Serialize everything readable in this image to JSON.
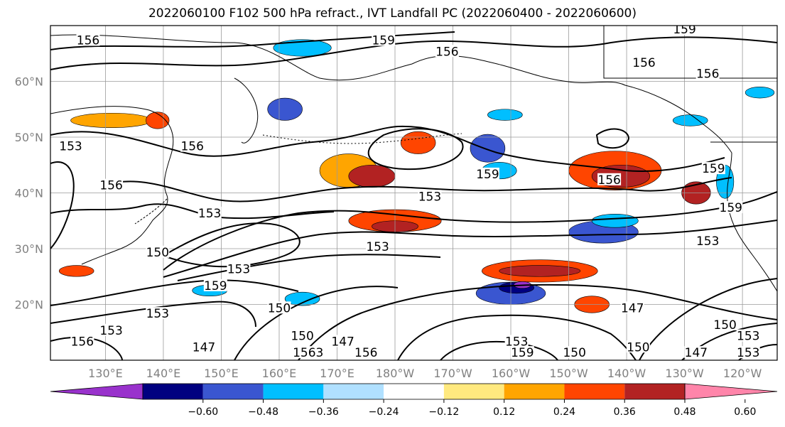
{
  "title": "2022060100 F102 500 hPa refract., IVT Landfall PC (2022060400 - 2022060600)",
  "latitudes": [
    {
      "label": "60°N",
      "lat": 60
    },
    {
      "label": "50°N",
      "lat": 50
    },
    {
      "label": "40°N",
      "lat": 40
    },
    {
      "label": "30°N",
      "lat": 30
    },
    {
      "label": "20°N",
      "lat": 20
    }
  ],
  "longitudes": [
    {
      "label": "130°E",
      "lon": 130
    },
    {
      "label": "140°E",
      "lon": 140
    },
    {
      "label": "150°E",
      "lon": 150
    },
    {
      "label": "160°E",
      "lon": 160
    },
    {
      "label": "170°E",
      "lon": 170
    },
    {
      "label": "180°W",
      "lon": 180
    },
    {
      "label": "170°W",
      "lon": 190
    },
    {
      "label": "160°W",
      "lon": 200
    },
    {
      "label": "150°W",
      "lon": 210
    },
    {
      "label": "140°W",
      "lon": 220
    },
    {
      "label": "130°W",
      "lon": 230
    },
    {
      "label": "120°W",
      "lon": 240
    }
  ],
  "colorbar": {
    "colors": [
      "#9932cc",
      "#000080",
      "#3a56d0",
      "#00bfff",
      "#b0e0ff",
      "#ffffff",
      "#ffe97f",
      "#ffa500",
      "#ff4500",
      "#b22222",
      "#ff85aa"
    ],
    "ticks": [
      "−0.60",
      "−0.48",
      "−0.36",
      "−0.24",
      "−0.12",
      "0.12",
      "0.24",
      "0.36",
      "0.48",
      "0.60"
    ]
  },
  "contour_labels": [
    {
      "text": "156",
      "lon": 127,
      "lat": 67
    },
    {
      "text": "159",
      "lon": 178,
      "lat": 67
    },
    {
      "text": "156",
      "lon": 189,
      "lat": 65
    },
    {
      "text": "159",
      "lon": 230,
      "lat": 69
    },
    {
      "text": "156",
      "lon": 223,
      "lat": 63
    },
    {
      "text": "156",
      "lon": 234,
      "lat": 61
    },
    {
      "text": "153",
      "lon": 124,
      "lat": 48
    },
    {
      "text": "156",
      "lon": 145,
      "lat": 48
    },
    {
      "text": "156",
      "lon": 131,
      "lat": 41
    },
    {
      "text": "159",
      "lon": 196,
      "lat": 43
    },
    {
      "text": "156",
      "lon": 217,
      "lat": 42
    },
    {
      "text": "153",
      "lon": 186,
      "lat": 39
    },
    {
      "text": "159",
      "lon": 235,
      "lat": 44
    },
    {
      "text": "159",
      "lon": 238,
      "lat": 37
    },
    {
      "text": "153",
      "lon": 148,
      "lat": 36
    },
    {
      "text": "153",
      "lon": 234,
      "lat": 31
    },
    {
      "text": "153",
      "lon": 177,
      "lat": 30
    },
    {
      "text": "150",
      "lon": 139,
      "lat": 29
    },
    {
      "text": "153",
      "lon": 153,
      "lat": 26
    },
    {
      "text": "159",
      "lon": 149,
      "lat": 23
    },
    {
      "text": "150",
      "lon": 160,
      "lat": 19
    },
    {
      "text": "153",
      "lon": 139,
      "lat": 18
    },
    {
      "text": "147",
      "lon": 221,
      "lat": 19
    },
    {
      "text": "150",
      "lon": 164,
      "lat": 14
    },
    {
      "text": "147",
      "lon": 171,
      "lat": 13
    },
    {
      "text": "147",
      "lon": 147,
      "lat": 12
    },
    {
      "text": "1563",
      "lon": 165,
      "lat": 11
    },
    {
      "text": "156",
      "lon": 175,
      "lat": 11
    },
    {
      "text": "153",
      "lon": 201,
      "lat": 13
    },
    {
      "text": "159",
      "lon": 202,
      "lat": 11
    },
    {
      "text": "150",
      "lon": 211,
      "lat": 11
    },
    {
      "text": "150",
      "lon": 222,
      "lat": 12
    },
    {
      "text": "147",
      "lon": 232,
      "lat": 11
    },
    {
      "text": "150",
      "lon": 237,
      "lat": 16
    },
    {
      "text": "153",
      "lon": 241,
      "lat": 14
    },
    {
      "text": "153",
      "lon": 241,
      "lat": 11
    },
    {
      "text": "153",
      "lon": 131,
      "lat": 15
    },
    {
      "text": "156",
      "lon": 126,
      "lat": 13
    }
  ],
  "fill_patches": [
    {
      "lon": 131,
      "lat": 53,
      "rx": 7,
      "ry": 1.3,
      "level": 7
    },
    {
      "lon": 139,
      "lat": 53,
      "rx": 2,
      "ry": 1.5,
      "level": 8
    },
    {
      "lon": 172,
      "lat": 44,
      "rx": 5,
      "ry": 3,
      "level": 7
    },
    {
      "lon": 176,
      "lat": 43,
      "rx": 4,
      "ry": 2,
      "level": 9
    },
    {
      "lon": 184,
      "lat": 49,
      "rx": 3,
      "ry": 2,
      "level": 8
    },
    {
      "lon": 218,
      "lat": 44,
      "rx": 8,
      "ry": 3.5,
      "level": 8
    },
    {
      "lon": 219,
      "lat": 43,
      "rx": 5,
      "ry": 2,
      "level": 9
    },
    {
      "lon": 232,
      "lat": 40,
      "rx": 2.5,
      "ry": 2,
      "level": 9
    },
    {
      "lon": 180,
      "lat": 35,
      "rx": 8,
      "ry": 2,
      "level": 8
    },
    {
      "lon": 180,
      "lat": 34,
      "rx": 4,
      "ry": 1,
      "level": 9
    },
    {
      "lon": 205,
      "lat": 26,
      "rx": 10,
      "ry": 2,
      "level": 8
    },
    {
      "lon": 205,
      "lat": 26,
      "rx": 7,
      "ry": 1,
      "level": 9
    },
    {
      "lon": 214,
      "lat": 20,
      "rx": 3,
      "ry": 1.5,
      "level": 8
    },
    {
      "lon": 125,
      "lat": 26,
      "rx": 3,
      "ry": 1,
      "level": 8
    },
    {
      "lon": 161,
      "lat": 55,
      "rx": 3,
      "ry": 2,
      "level": 2
    },
    {
      "lon": 164,
      "lat": 66,
      "rx": 5,
      "ry": 1.5,
      "level": 3
    },
    {
      "lon": 196,
      "lat": 48,
      "rx": 3,
      "ry": 2.5,
      "level": 2
    },
    {
      "lon": 198,
      "lat": 44,
      "rx": 3,
      "ry": 1.5,
      "level": 3
    },
    {
      "lon": 216,
      "lat": 33,
      "rx": 6,
      "ry": 2,
      "level": 2
    },
    {
      "lon": 218,
      "lat": 35,
      "rx": 4,
      "ry": 1.2,
      "level": 3
    },
    {
      "lon": 200,
      "lat": 22,
      "rx": 6,
      "ry": 2,
      "level": 2
    },
    {
      "lon": 201,
      "lat": 23,
      "rx": 3,
      "ry": 1,
      "level": 1
    },
    {
      "lon": 202,
      "lat": 23.5,
      "rx": 1.5,
      "ry": 0.6,
      "level": 0
    },
    {
      "lon": 148,
      "lat": 22.5,
      "rx": 3,
      "ry": 1,
      "level": 3
    },
    {
      "lon": 164,
      "lat": 21,
      "rx": 3,
      "ry": 1.2,
      "level": 3
    },
    {
      "lon": 199,
      "lat": 54,
      "rx": 3,
      "ry": 1,
      "level": 3
    },
    {
      "lon": 231,
      "lat": 53,
      "rx": 3,
      "ry": 1,
      "level": 3
    },
    {
      "lon": 243,
      "lat": 58,
      "rx": 2.5,
      "ry": 1,
      "level": 3
    },
    {
      "lon": 237,
      "lat": 42,
      "rx": 1.5,
      "ry": 3,
      "level": 3
    }
  ]
}
